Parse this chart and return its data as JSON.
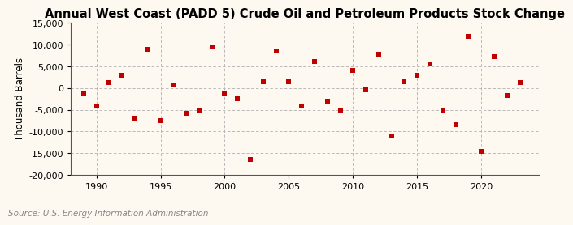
{
  "title": "Annual West Coast (PADD 5) Crude Oil and Petroleum Products Stock Change",
  "ylabel": "Thousand Barrels",
  "source": "Source: U.S. Energy Information Administration",
  "years": [
    1989,
    1990,
    1991,
    1992,
    1993,
    1994,
    1995,
    1996,
    1997,
    1998,
    1999,
    2000,
    2001,
    2002,
    2003,
    2004,
    2005,
    2006,
    2007,
    2008,
    2009,
    2010,
    2011,
    2012,
    2013,
    2014,
    2015,
    2016,
    2017,
    2018,
    2019,
    2020,
    2021,
    2022,
    2023
  ],
  "values": [
    -1200,
    -4200,
    1300,
    3000,
    -7000,
    9000,
    -7500,
    700,
    -5800,
    -5200,
    9500,
    -1200,
    -2500,
    -16500,
    1500,
    8500,
    1500,
    -4200,
    6200,
    -3000,
    -5200,
    4000,
    -500,
    7800,
    -11000,
    1500,
    3000,
    5500,
    -5000,
    -8500,
    11800,
    -14500,
    7300,
    -1700,
    1200
  ],
  "marker_color": "#c00000",
  "marker_size": 18,
  "marker_shape": "s",
  "xlim": [
    1988.0,
    2024.5
  ],
  "ylim": [
    -20000,
    15000
  ],
  "yticks": [
    -20000,
    -15000,
    -10000,
    -5000,
    0,
    5000,
    10000,
    15000
  ],
  "xticks": [
    1990,
    1995,
    2000,
    2005,
    2010,
    2015,
    2020
  ],
  "bg_color": "#fef9f0",
  "grid_color": "#b0b0b0",
  "title_fontsize": 10.5,
  "label_fontsize": 8.5,
  "tick_fontsize": 8,
  "source_fontsize": 7.5
}
